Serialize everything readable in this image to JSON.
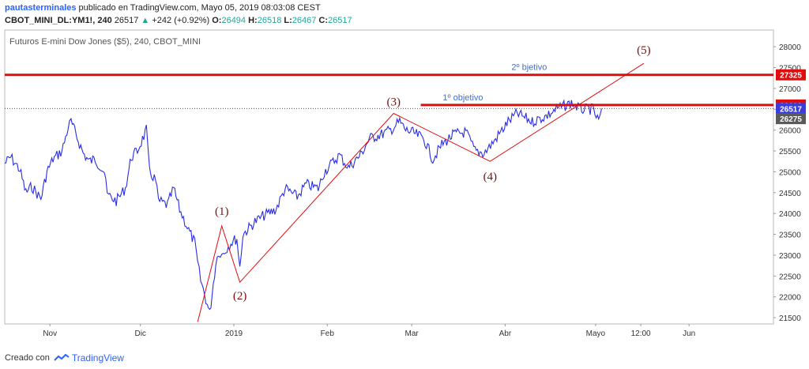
{
  "header": {
    "author": "pautasterminales",
    "published": "publicado en TradingView.com, Mayo 05, 2019 08:03:08 CEST",
    "symbol": "CBOT_MINI_DL:YM1!, 240",
    "last": "26517",
    "change_arrow": "▲",
    "change": "+242 (+0.92%)",
    "o_label": "O:",
    "o_value": "26494",
    "h_label": "H:",
    "h_value": "26518",
    "l_label": "L:",
    "l_value": "26467",
    "c_label": "C:",
    "c_value": "26517"
  },
  "footer": {
    "created_with": "Creado con",
    "brand": "TradingView"
  },
  "chart_data": {
    "type": "line",
    "title": "Futuros E-mini Dow Jones ($5), 240, CBOT_MINI",
    "ylim": [
      21350,
      28400
    ],
    "y_ticks": [
      21500,
      22000,
      22500,
      23000,
      23500,
      24000,
      24500,
      25000,
      25500,
      26000,
      26500,
      27000,
      27500,
      28000
    ],
    "x_ticks": [
      {
        "label": "Nov",
        "date": "2018-11-01"
      },
      {
        "label": "Dic",
        "date": "2018-12-01"
      },
      {
        "label": "2019",
        "date": "2019-01-01"
      },
      {
        "label": "Feb",
        "date": "2019-02-01"
      },
      {
        "label": "Mar",
        "date": "2019-03-01"
      },
      {
        "label": "Abr",
        "date": "2019-04-01"
      },
      {
        "label": "Mayo",
        "date": "2019-05-01"
      },
      {
        "label": "12:00",
        "date": "2019-05-16"
      },
      {
        "label": "Jun",
        "date": "2019-06-01"
      }
    ],
    "x_range": [
      "2018-10-17",
      "2019-06-29"
    ],
    "grid": false,
    "color": "#2a2ee0",
    "series": [
      {
        "values": [
          [
            "2018-10-17",
            25200
          ],
          [
            "2018-10-19",
            25350
          ],
          [
            "2018-10-22",
            25050
          ],
          [
            "2018-10-24",
            24500
          ],
          [
            "2018-10-26",
            24650
          ],
          [
            "2018-10-29",
            24350
          ],
          [
            "2018-10-31",
            25000
          ],
          [
            "2018-11-02",
            25300
          ],
          [
            "2018-11-05",
            25500
          ],
          [
            "2018-11-07",
            26050
          ],
          [
            "2018-11-08",
            26200
          ],
          [
            "2018-11-12",
            25450
          ],
          [
            "2018-11-14",
            25250
          ],
          [
            "2018-11-16",
            25300
          ],
          [
            "2018-11-19",
            25000
          ],
          [
            "2018-11-20",
            24450
          ],
          [
            "2018-11-23",
            24300
          ],
          [
            "2018-11-26",
            24600
          ],
          [
            "2018-11-28",
            25350
          ],
          [
            "2018-11-30",
            25500
          ],
          [
            "2018-12-03",
            26000
          ],
          [
            "2018-12-04",
            25000
          ],
          [
            "2018-12-06",
            24800
          ],
          [
            "2018-12-07",
            24300
          ],
          [
            "2018-12-10",
            24200
          ],
          [
            "2018-12-12",
            24600
          ],
          [
            "2018-12-14",
            24100
          ],
          [
            "2018-12-17",
            23600
          ],
          [
            "2018-12-19",
            23300
          ],
          [
            "2018-12-20",
            22800
          ],
          [
            "2018-12-21",
            22400
          ],
          [
            "2018-12-24",
            21600
          ],
          [
            "2018-12-26",
            22800
          ],
          [
            "2018-12-27",
            23100
          ],
          [
            "2018-12-28",
            23000
          ],
          [
            "2018-12-31",
            23300
          ],
          [
            "2019-01-02",
            23400
          ],
          [
            "2019-01-03",
            22700
          ],
          [
            "2019-01-04",
            23500
          ],
          [
            "2019-01-08",
            23800
          ],
          [
            "2019-01-11",
            23950
          ],
          [
            "2019-01-15",
            24100
          ],
          [
            "2019-01-18",
            24600
          ],
          [
            "2019-01-22",
            24400
          ],
          [
            "2019-01-25",
            24700
          ],
          [
            "2019-01-29",
            24600
          ],
          [
            "2019-01-31",
            25000
          ],
          [
            "2019-02-05",
            25400
          ],
          [
            "2019-02-08",
            25100
          ],
          [
            "2019-02-12",
            25400
          ],
          [
            "2019-02-15",
            25800
          ],
          [
            "2019-02-19",
            25900
          ],
          [
            "2019-02-22",
            26000
          ],
          [
            "2019-02-25",
            26200
          ],
          [
            "2019-02-27",
            26000
          ],
          [
            "2019-03-01",
            25950
          ],
          [
            "2019-03-05",
            25800
          ],
          [
            "2019-03-08",
            25300
          ],
          [
            "2019-03-11",
            25650
          ],
          [
            "2019-03-15",
            25900
          ],
          [
            "2019-03-19",
            25950
          ],
          [
            "2019-03-22",
            25500
          ],
          [
            "2019-03-25",
            25450
          ],
          [
            "2019-03-28",
            25700
          ],
          [
            "2019-04-02",
            26200
          ],
          [
            "2019-04-05",
            26400
          ],
          [
            "2019-04-10",
            26200
          ],
          [
            "2019-04-15",
            26350
          ],
          [
            "2019-04-18",
            26500
          ],
          [
            "2019-04-23",
            26650
          ],
          [
            "2019-04-26",
            26500
          ],
          [
            "2019-04-30",
            26500
          ],
          [
            "2019-05-02",
            26200
          ],
          [
            "2019-05-03",
            26517
          ]
        ]
      }
    ],
    "price_labels": [
      {
        "value": 27325,
        "text": "27325",
        "bg": "#e00d0d"
      },
      {
        "value": 26602,
        "text": "26602",
        "bg": "#e00d0d"
      },
      {
        "value": 26517,
        "text": "26517",
        "bg": "#3a3cdc"
      },
      {
        "value": 26275,
        "text": "26275",
        "bg": "#5a5a5a"
      }
    ],
    "horizontal_levels": [
      {
        "value": 27325,
        "label": "2º bjetivo",
        "color": "#e00d0d"
      },
      {
        "value": 26602,
        "label": "1º objetivo",
        "color": "#e00d0d"
      }
    ],
    "current_price_line": {
      "value": 26517,
      "color": "#3a3cdc"
    },
    "wave_color": "#e00d0d",
    "wave_points": [
      {
        "label": "",
        "date": "2018-12-20",
        "value": 21400
      },
      {
        "label": "(1)",
        "date": "2018-12-28",
        "value": 23700
      },
      {
        "label": "(2)",
        "date": "2019-01-03",
        "value": 22350
      },
      {
        "label": "(3)",
        "date": "2019-02-23",
        "value": 26400
      },
      {
        "label": "(4)",
        "date": "2019-03-27",
        "value": 25250
      },
      {
        "label": "(5)",
        "date": "2019-05-17",
        "value": 27600
      }
    ]
  }
}
